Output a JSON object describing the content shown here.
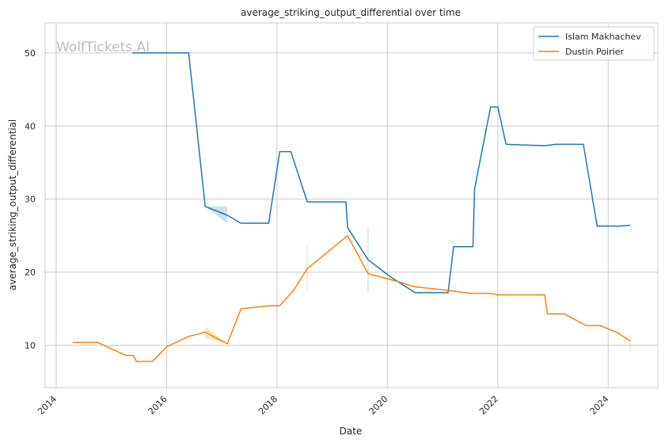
{
  "chart_data": {
    "type": "line",
    "title": "average_striking_output_differential over time",
    "xlabel": "Date",
    "ylabel": "average_striking_output_differential",
    "watermark": "WolfTickets.AI",
    "xlim": [
      2013.8,
      2024.9
    ],
    "ylim": [
      4.2,
      54.1
    ],
    "x_ticks": [
      2014,
      2016,
      2018,
      2020,
      2022,
      2024
    ],
    "x_tick_labels": [
      "2014",
      "2016",
      "2018",
      "2020",
      "2022",
      "2024"
    ],
    "y_ticks": [
      10,
      20,
      30,
      40,
      50
    ],
    "y_tick_labels": [
      "10",
      "20",
      "30",
      "40",
      "50"
    ],
    "grid": true,
    "legend_position": "top-right",
    "series": [
      {
        "name": "Islam Makhachev",
        "color": "#1f77b4",
        "points": [
          [
            2015.38,
            50.0
          ],
          [
            2015.8,
            50.0
          ],
          [
            2016.4,
            50.0
          ],
          [
            2016.7,
            29.0
          ],
          [
            2017.1,
            27.8
          ],
          [
            2017.35,
            26.7
          ],
          [
            2017.85,
            26.7
          ],
          [
            2018.05,
            36.5
          ],
          [
            2018.25,
            36.5
          ],
          [
            2018.55,
            29.6
          ],
          [
            2019.25,
            29.6
          ],
          [
            2019.28,
            26.1
          ],
          [
            2019.65,
            21.7
          ],
          [
            2020.05,
            19.4
          ],
          [
            2020.5,
            17.2
          ],
          [
            2021.1,
            17.2
          ],
          [
            2021.2,
            23.5
          ],
          [
            2021.55,
            23.5
          ],
          [
            2021.58,
            31.4
          ],
          [
            2021.87,
            42.6
          ],
          [
            2022.0,
            42.6
          ],
          [
            2022.15,
            37.5
          ],
          [
            2022.85,
            37.3
          ],
          [
            2023.05,
            37.5
          ],
          [
            2023.55,
            37.5
          ],
          [
            2023.8,
            26.3
          ],
          [
            2024.2,
            26.3
          ],
          [
            2024.4,
            26.4
          ]
        ],
        "band": [
          [
            2016.7,
            29.0,
            29.0
          ],
          [
            2017.1,
            26.6,
            29.0
          ]
        ],
        "error_marks": [
          [
            2019.65,
            17.2,
            26.2
          ]
        ]
      },
      {
        "name": "Dustin Poirier",
        "color": "#ff7f0e",
        "points": [
          [
            2014.3,
            10.4
          ],
          [
            2014.75,
            10.4
          ],
          [
            2015.27,
            8.6
          ],
          [
            2015.4,
            8.6
          ],
          [
            2015.45,
            7.8
          ],
          [
            2015.75,
            7.8
          ],
          [
            2016.0,
            9.8
          ],
          [
            2016.4,
            11.2
          ],
          [
            2016.7,
            11.8
          ],
          [
            2017.1,
            10.2
          ],
          [
            2017.35,
            15.0
          ],
          [
            2017.85,
            15.4
          ],
          [
            2018.05,
            15.4
          ],
          [
            2018.3,
            17.5
          ],
          [
            2018.55,
            20.5
          ],
          [
            2019.28,
            25.0
          ],
          [
            2019.65,
            19.8
          ],
          [
            2020.15,
            18.8
          ],
          [
            2020.5,
            18.0
          ],
          [
            2021.1,
            17.5
          ],
          [
            2021.5,
            17.1
          ],
          [
            2021.85,
            17.1
          ],
          [
            2022.0,
            16.9
          ],
          [
            2022.85,
            16.9
          ],
          [
            2022.9,
            14.3
          ],
          [
            2023.2,
            14.3
          ],
          [
            2023.6,
            12.7
          ],
          [
            2023.85,
            12.7
          ],
          [
            2024.15,
            11.8
          ],
          [
            2024.4,
            10.6
          ]
        ],
        "band": [
          [
            2016.7,
            11.0,
            12.6
          ],
          [
            2017.1,
            10.2,
            10.2
          ]
        ],
        "error_marks": [
          [
            2018.55,
            17.3,
            23.7
          ],
          [
            2024.4,
            9.2,
            11.6
          ]
        ]
      }
    ]
  }
}
